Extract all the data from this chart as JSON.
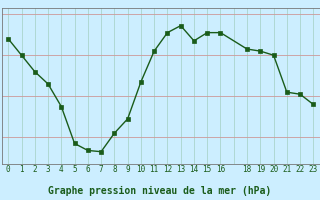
{
  "x": [
    0,
    1,
    2,
    3,
    4,
    5,
    6,
    7,
    8,
    9,
    10,
    11,
    12,
    13,
    14,
    15,
    16,
    18,
    19,
    20,
    21,
    22,
    23
  ],
  "y": [
    1009.4,
    1009.0,
    1008.6,
    1008.3,
    1007.75,
    1006.85,
    1006.68,
    1006.65,
    1007.1,
    1007.45,
    1008.35,
    1009.1,
    1009.55,
    1009.72,
    1009.35,
    1009.55,
    1009.55,
    1009.15,
    1009.1,
    1009.0,
    1008.1,
    1008.05,
    1007.8
  ],
  "line_color": "#1a5c1a",
  "marker_color": "#1a5c1a",
  "bg_color": "#cceeff",
  "grid_color": "#aad4cc",
  "axis_label_color": "#1a5c1a",
  "xlabel": "Graphe pression niveau de la mer (hPa)",
  "ylim": [
    1006.35,
    1010.15
  ],
  "yticks": [
    1007,
    1008,
    1009,
    1010
  ],
  "xtick_labels": [
    "0",
    "1",
    "2",
    "3",
    "4",
    "5",
    "6",
    "7",
    "8",
    "9",
    "10",
    "11",
    "12",
    "13",
    "14",
    "15",
    "16",
    "",
    "18",
    "19",
    "20",
    "21",
    "22",
    "23"
  ],
  "border_color": "#777777"
}
